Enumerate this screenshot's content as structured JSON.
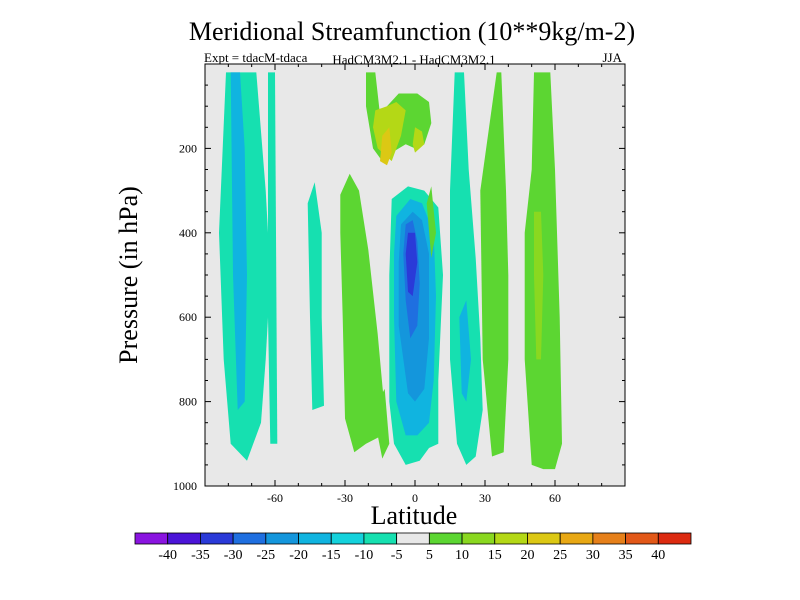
{
  "chart_data": {
    "type": "filled-contour",
    "title": "Meridional Streamfunction (10**9kg/m-2)",
    "expt_label": "Expt = tdacM-tdaca",
    "model_label": "HadCM3M2.1 - HadCM3M2.1",
    "season": "JJA",
    "xlabel": "Latitude",
    "ylabel": "Pressure (in hPa)",
    "xlim": [
      -90,
      90
    ],
    "ylim": [
      1000,
      0
    ],
    "x_ticks": [
      {
        "value": -60,
        "label": "-60"
      },
      {
        "value": -30,
        "label": "-30"
      },
      {
        "value": 0,
        "label": "0"
      },
      {
        "value": 30,
        "label": "30"
      },
      {
        "value": 60,
        "label": "60"
      }
    ],
    "y_ticks": [
      {
        "value": 200,
        "label": "200"
      },
      {
        "value": 400,
        "label": "400"
      },
      {
        "value": 600,
        "label": "600"
      },
      {
        "value": 800,
        "label": "800"
      },
      {
        "value": 1000,
        "label": "1000"
      }
    ],
    "background_color": "#e8e8e8",
    "colorbar": {
      "levels": [
        "-40",
        "-35",
        "-30",
        "-25",
        "-20",
        "-15",
        "-10",
        "-5",
        "5",
        "10",
        "15",
        "20",
        "25",
        "30",
        "35",
        "40"
      ],
      "colors": [
        "#8a14e0",
        "#4b14d8",
        "#2a3ad8",
        "#1f6fe0",
        "#1496dc",
        "#10b4e0",
        "#14d2dc",
        "#16e0b0",
        "#e8e8e8",
        "#5cd632",
        "#8ad820",
        "#b4d816",
        "#dcc814",
        "#e8a814",
        "#e6801a",
        "#e25818",
        "#dc2a10"
      ]
    },
    "contour_regions": [
      {
        "value": -10,
        "color": "#16e0b0",
        "pts": [
          [
            -81,
            20
          ],
          [
            -68,
            20
          ],
          [
            -64,
            300
          ],
          [
            -62,
            500
          ],
          [
            -64,
            700
          ],
          [
            -66,
            850
          ],
          [
            -72,
            940
          ],
          [
            -79,
            900
          ],
          [
            -82,
            700
          ],
          [
            -84,
            400
          ]
        ]
      },
      {
        "value": -15,
        "color": "#10b4e0",
        "pts": [
          [
            -79,
            20
          ],
          [
            -75,
            20
          ],
          [
            -73,
            200
          ],
          [
            -72,
            500
          ],
          [
            -73,
            800
          ],
          [
            -76,
            820
          ],
          [
            -78,
            500
          ]
        ]
      },
      {
        "value": -10,
        "color": "#16e0b0",
        "pts": [
          [
            -63,
            20
          ],
          [
            -60,
            20
          ],
          [
            -59,
            900
          ],
          [
            -62,
            900
          ],
          [
            -63,
            600
          ]
        ]
      },
      {
        "value": 10,
        "color": "#5cd632",
        "pts": [
          [
            -21,
            20
          ],
          [
            -17,
            20
          ],
          [
            -15,
            120
          ],
          [
            -12,
            100
          ],
          [
            -7,
            70
          ],
          [
            1,
            70
          ],
          [
            6,
            90
          ],
          [
            7,
            140
          ],
          [
            4,
            190
          ],
          [
            0,
            200
          ],
          [
            -4,
            190
          ],
          [
            -10,
            210
          ],
          [
            -14,
            230
          ],
          [
            -18,
            200
          ],
          [
            -21,
            100
          ]
        ]
      },
      {
        "value": 15,
        "color": "#b4d816",
        "pts": [
          [
            -17,
            110
          ],
          [
            -12,
            100
          ],
          [
            -8,
            90
          ],
          [
            -4,
            110
          ],
          [
            -6,
            170
          ],
          [
            -10,
            230
          ],
          [
            -16,
            200
          ],
          [
            -18,
            150
          ]
        ]
      },
      {
        "value": 20,
        "color": "#dcc814",
        "pts": [
          [
            -14,
            170
          ],
          [
            -11,
            150
          ],
          [
            -10,
            210
          ],
          [
            -12,
            240
          ],
          [
            -15,
            230
          ]
        ]
      },
      {
        "value": 15,
        "color": "#b4d816",
        "pts": [
          [
            0,
            150
          ],
          [
            3,
            160
          ],
          [
            4,
            190
          ],
          [
            0,
            210
          ],
          [
            -1,
            190
          ]
        ]
      },
      {
        "value": -10,
        "color": "#16e0b0",
        "pts": [
          [
            -10,
            320
          ],
          [
            -3,
            290
          ],
          [
            4,
            300
          ],
          [
            10,
            340
          ],
          [
            12,
            500
          ],
          [
            10,
            750
          ],
          [
            10,
            900
          ],
          [
            6,
            910
          ],
          [
            2,
            940
          ],
          [
            -4,
            950
          ],
          [
            -9,
            900
          ],
          [
            -11,
            800
          ],
          [
            -11,
            500
          ]
        ]
      },
      {
        "value": -15,
        "color": "#10b4e0",
        "pts": [
          [
            -8,
            360
          ],
          [
            -2,
            320
          ],
          [
            3,
            330
          ],
          [
            8,
            400
          ],
          [
            9,
            550
          ],
          [
            8,
            750
          ],
          [
            6,
            850
          ],
          [
            1,
            880
          ],
          [
            -4,
            880
          ],
          [
            -8,
            800
          ],
          [
            -9,
            600
          ],
          [
            -9,
            450
          ]
        ]
      },
      {
        "value": -20,
        "color": "#1496dc",
        "pts": [
          [
            -6,
            380
          ],
          [
            -1,
            350
          ],
          [
            3,
            370
          ],
          [
            6,
            450
          ],
          [
            6,
            650
          ],
          [
            4,
            770
          ],
          [
            0,
            800
          ],
          [
            -3,
            780
          ],
          [
            -7,
            620
          ],
          [
            -7,
            470
          ]
        ]
      },
      {
        "value": -25,
        "color": "#1f6fe0",
        "pts": [
          [
            -4,
            380
          ],
          [
            -1,
            370
          ],
          [
            1,
            420
          ],
          [
            2,
            520
          ],
          [
            1,
            620
          ],
          [
            -2,
            650
          ],
          [
            -4,
            560
          ],
          [
            -5,
            450
          ]
        ]
      },
      {
        "value": -30,
        "color": "#2a3ad8",
        "pts": [
          [
            -3,
            400
          ],
          [
            0,
            400
          ],
          [
            1,
            470
          ],
          [
            -1,
            550
          ],
          [
            -3,
            540
          ],
          [
            -4,
            450
          ]
        ]
      },
      {
        "value": 10,
        "color": "#5cd632",
        "pts": [
          [
            -32,
            310
          ],
          [
            -28,
            260
          ],
          [
            -24,
            300
          ],
          [
            -20,
            440
          ],
          [
            -16,
            640
          ],
          [
            -14,
            760
          ],
          [
            -13,
            820
          ],
          [
            -14,
            880
          ],
          [
            -21,
            900
          ],
          [
            -26,
            920
          ],
          [
            -30,
            840
          ],
          [
            -31,
            600
          ],
          [
            -32,
            400
          ]
        ]
      },
      {
        "value": 10,
        "color": "#5cd632",
        "pts": [
          [
            -16,
            800
          ],
          [
            -13,
            770
          ],
          [
            -11,
            900
          ],
          [
            -14,
            935
          ],
          [
            -16,
            880
          ]
        ]
      },
      {
        "value": -10,
        "color": "#16e0b0",
        "pts": [
          [
            -46,
            330
          ],
          [
            -43,
            280
          ],
          [
            -40,
            400
          ],
          [
            -40,
            600
          ],
          [
            -39,
            810
          ],
          [
            -44,
            820
          ],
          [
            -45,
            600
          ]
        ]
      },
      {
        "value": -10,
        "color": "#16e0b0",
        "pts": [
          [
            17,
            20
          ],
          [
            21,
            20
          ],
          [
            23,
            250
          ],
          [
            26,
            460
          ],
          [
            28,
            650
          ],
          [
            29,
            820
          ],
          [
            26,
            930
          ],
          [
            22,
            950
          ],
          [
            18,
            900
          ],
          [
            15,
            700
          ],
          [
            15,
            300
          ]
        ]
      },
      {
        "value": -15,
        "color": "#10b4e0",
        "pts": [
          [
            19,
            600
          ],
          [
            22,
            560
          ],
          [
            24,
            700
          ],
          [
            22,
            800
          ],
          [
            20,
            780
          ]
        ]
      },
      {
        "value": 10,
        "color": "#5cd632",
        "pts": [
          [
            5,
            330
          ],
          [
            7,
            290
          ],
          [
            9,
            400
          ],
          [
            7,
            460
          ]
        ]
      },
      {
        "value": 10,
        "color": "#5cd632",
        "pts": [
          [
            35,
            20
          ],
          [
            37,
            20
          ],
          [
            39,
            300
          ],
          [
            40,
            500
          ],
          [
            40,
            700
          ],
          [
            38,
            920
          ],
          [
            33,
            930
          ],
          [
            29,
            700
          ],
          [
            28,
            300
          ]
        ]
      },
      {
        "value": 10,
        "color": "#5cd632",
        "pts": [
          [
            51,
            20
          ],
          [
            58,
            20
          ],
          [
            60,
            250
          ],
          [
            62,
            600
          ],
          [
            63,
            900
          ],
          [
            60,
            960
          ],
          [
            55,
            960
          ],
          [
            50,
            950
          ],
          [
            47,
            700
          ],
          [
            47,
            400
          ],
          [
            50,
            250
          ]
        ]
      },
      {
        "value": 15,
        "color": "#8ad820",
        "pts": [
          [
            51,
            350
          ],
          [
            54,
            350
          ],
          [
            55,
            500
          ],
          [
            54,
            700
          ],
          [
            52,
            700
          ],
          [
            51,
            500
          ]
        ]
      }
    ]
  }
}
